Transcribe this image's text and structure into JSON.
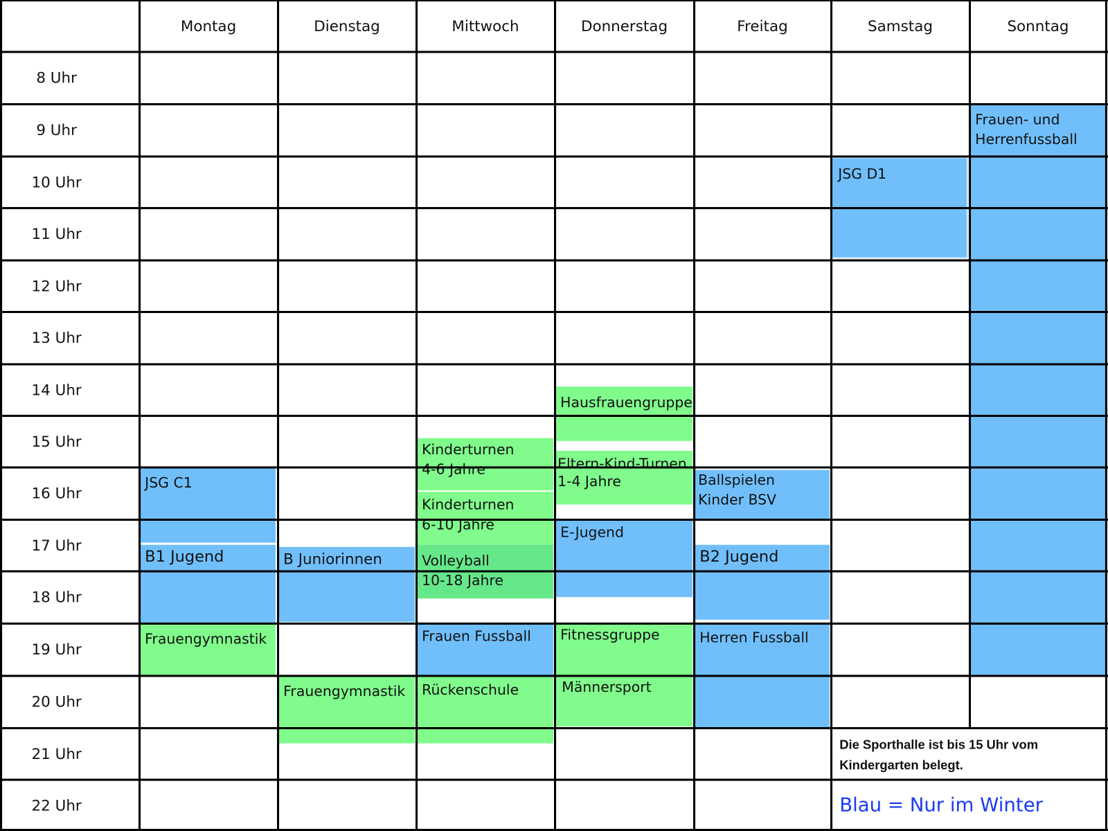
{
  "days": [
    "Montag",
    "Dienstag",
    "Mittwoch",
    "Donnerstag",
    "Freitag",
    "Samstag",
    "Sonntag"
  ],
  "hours": [
    "8 Uhr",
    "9 Uhr",
    "10 Uhr",
    "11 Uhr",
    "12 Uhr",
    "13 Uhr",
    "14 Uhr",
    "15 Uhr",
    "16 Uhr",
    "17 Uhr",
    "18 Uhr",
    "19 Uhr",
    "20 Uhr",
    "21 Uhr",
    "22 Uhr"
  ],
  "colors": {
    "winter_blue": "#70bffb",
    "all_year_green": "#80fb8c",
    "legend_text": "#1a3cf0"
  },
  "events": {
    "sonntag_fussball": {
      "day": "Sonntag",
      "l1": "Frauen- und",
      "l2": "Herrenfussball"
    },
    "samstag_jsg_d1": {
      "day": "Samstag",
      "l1": "JSG D1"
    },
    "montag_jsg_c1": {
      "day": "Montag",
      "l1": "JSG C1"
    },
    "montag_b1": {
      "day": "Montag",
      "l1": "B1 Jugend"
    },
    "montag_gym": {
      "day": "Montag",
      "l1": "Frauengymnastik"
    },
    "dienstag_bjun": {
      "day": "Dienstag",
      "l1": "B Juniorinnen"
    },
    "dienstag_gym": {
      "day": "Dienstag",
      "l1": "Frauengymnastik"
    },
    "mittwoch_kt46": {
      "day": "Mittwoch",
      "l1": "Kinderturnen",
      "l2": "4-6 Jahre"
    },
    "mittwoch_kt610": {
      "day": "Mittwoch",
      "l1": "Kinderturnen",
      "l2": "6-10 Jahre"
    },
    "mittwoch_volley": {
      "day": "Mittwoch",
      "l1": "Volleyball",
      "l2": "10-18 Jahre"
    },
    "mittwoch_ffuss": {
      "day": "Mittwoch",
      "l1": "Frauen Fussball"
    },
    "mittwoch_ruecken": {
      "day": "Mittwoch",
      "l1": "Rückenschule"
    },
    "donnerstag_haus": {
      "day": "Donnerstag",
      "l1": "Hausfrauengruppe"
    },
    "donnerstag_ekt": {
      "day": "Donnerstag",
      "l1": "Eltern-Kind-Turnen",
      "l2": "1-4 Jahre"
    },
    "donnerstag_ej": {
      "day": "Donnerstag",
      "l1": "E-Jugend"
    },
    "donnerstag_fit": {
      "day": "Donnerstag",
      "l1": "Fitnessgruppe"
    },
    "donnerstag_maenner": {
      "day": "Donnerstag",
      "l1": "Männersport"
    },
    "freitag_ball": {
      "day": "Freitag",
      "l1": "Ballspielen",
      "l2": "Kinder BSV"
    },
    "freitag_b2": {
      "day": "Freitag",
      "l1": "B2 Jugend"
    },
    "freitag_herren": {
      "day": "Freitag",
      "l1": "Herren Fussball"
    }
  },
  "note": "Die Sporthalle ist bis 15 Uhr vom Kindergarten belegt.",
  "legend": "Blau = Nur im Winter"
}
